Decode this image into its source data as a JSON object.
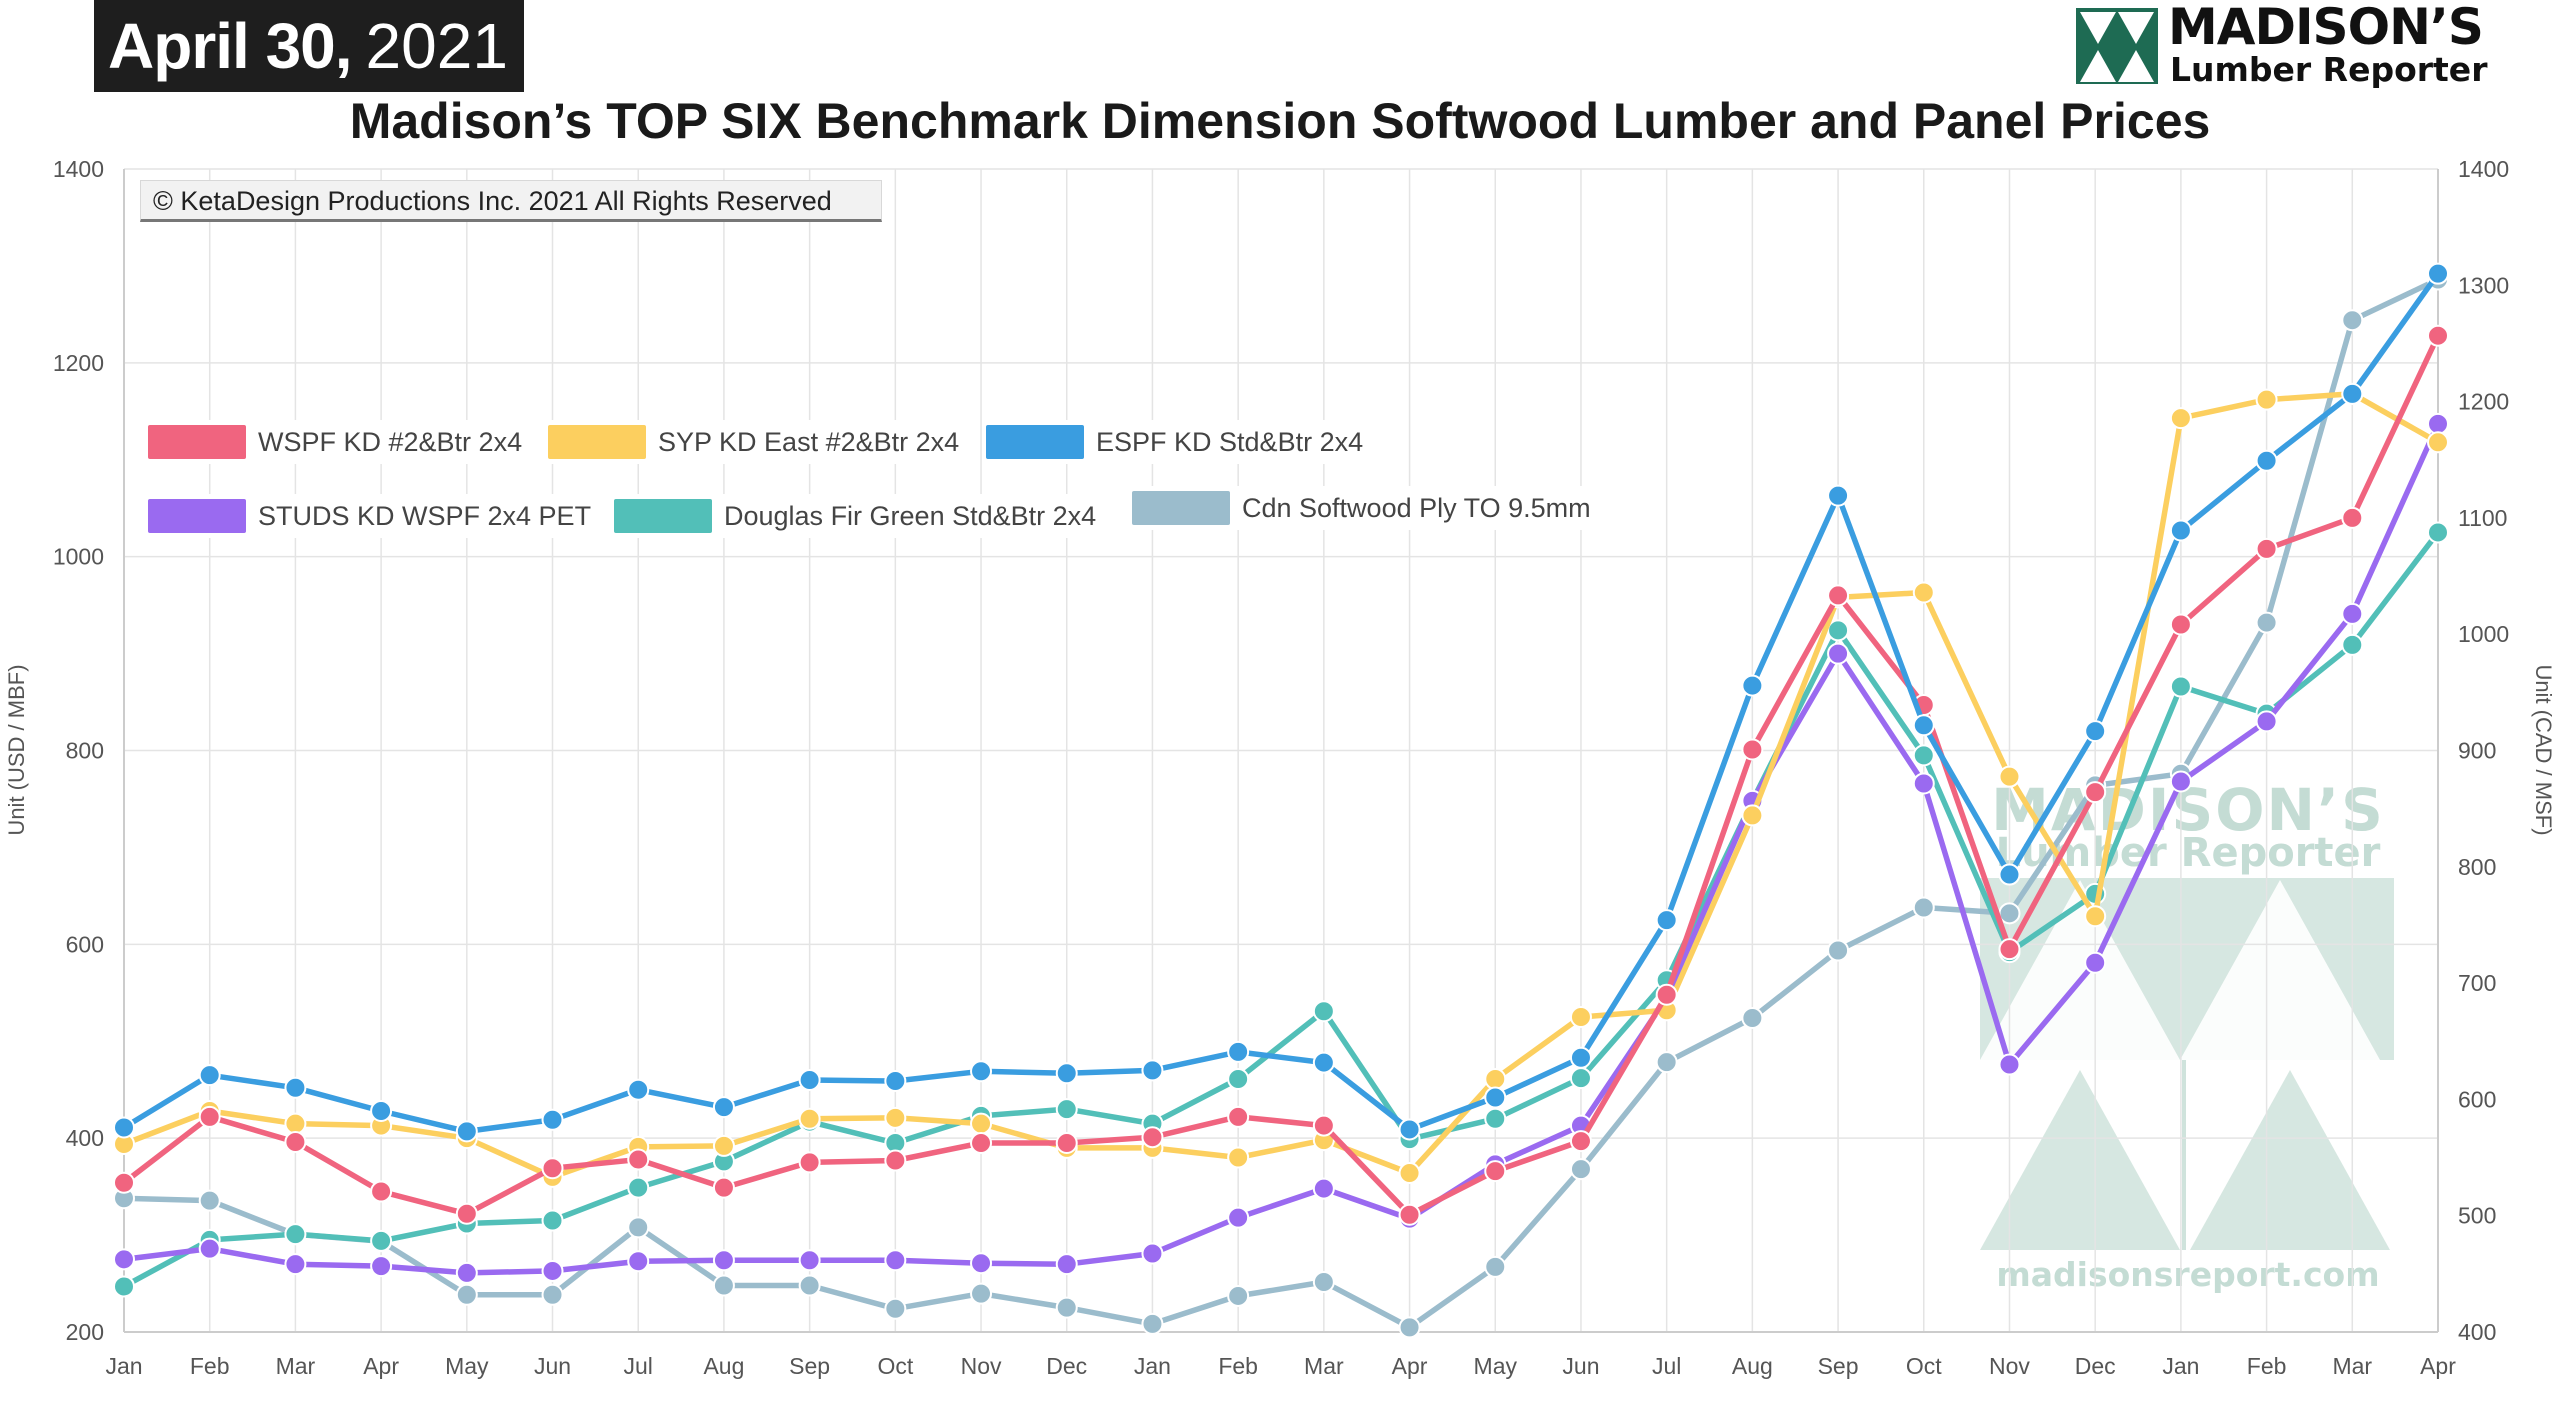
{
  "header": {
    "date_main": "April 30,",
    "date_year": "2021",
    "title": "Madison’s TOP SIX Benchmark Dimension Softwood Lumber and Panel Prices"
  },
  "logo": {
    "line1": "MADISON’S",
    "line2": "Lumber Reporter",
    "colors": {
      "mark": "#1e6b53",
      "text": "#111111"
    },
    "icon": "pine-tree-triangles-icon"
  },
  "copyright": "© KetaDesign Productions Inc. 2021 All Rights Reserved",
  "watermark": {
    "line1": "MADISON’S",
    "line2": "Lumber Reporter",
    "url": "madisonsreport.com"
  },
  "chart_data": {
    "type": "line",
    "x": [
      "Jan",
      "Feb",
      "Mar",
      "Apr",
      "May",
      "Jun",
      "Jul",
      "Aug",
      "Sep",
      "Oct",
      "Nov",
      "Dec",
      "Jan",
      "Feb",
      "Mar",
      "Apr",
      "May",
      "Jun",
      "Jul",
      "Aug",
      "Sep",
      "Oct",
      "Nov",
      "Dec",
      "Jan",
      "Feb",
      "Mar",
      "Apr"
    ],
    "y_left": {
      "label": "Unit (USD / MBF)",
      "min": 200,
      "max": 1400,
      "ticks": [
        200,
        400,
        600,
        800,
        1000,
        1200,
        1400
      ]
    },
    "y_right": {
      "label": "Unit (CAD / MSF)",
      "min": 400,
      "max": 1400,
      "ticks": [
        400,
        500,
        600,
        700,
        800,
        900,
        1000,
        1100,
        1200,
        1300,
        1400
      ]
    },
    "grid": true,
    "legend_position": "top-left",
    "series": [
      {
        "name": "WSPF KD #2&Btr 2x4",
        "color": "#f0647f",
        "axis": "left",
        "values": [
          354,
          422,
          396,
          345,
          322,
          369,
          378,
          349,
          375,
          377,
          395,
          395,
          401,
          422,
          413,
          321,
          366,
          397,
          548,
          801,
          960,
          847,
          595,
          757,
          930,
          1008,
          1040,
          1228
        ]
      },
      {
        "name": "SYP KD East #2&Btr 2x4",
        "color": "#fccf5f",
        "axis": "left",
        "values": [
          394,
          428,
          415,
          413,
          400,
          360,
          391,
          392,
          420,
          421,
          415,
          390,
          390,
          380,
          398,
          364,
          461,
          525,
          532,
          733,
          958,
          963,
          773,
          629,
          1143,
          1162,
          1168,
          1118
        ]
      },
      {
        "name": "ESPF KD Std&Btr 2x4",
        "color": "#3a9de0",
        "axis": "left",
        "values": [
          411,
          465,
          452,
          428,
          407,
          419,
          450,
          432,
          460,
          459,
          469,
          467,
          470,
          489,
          478,
          409,
          442,
          483,
          625,
          867,
          1063,
          826,
          672,
          820,
          1027,
          1099,
          1168,
          1292
        ]
      },
      {
        "name": "STUDS KD WSPF 2x4 PET",
        "color": "#9a6af0",
        "axis": "left",
        "values": [
          275,
          286,
          270,
          268,
          261,
          263,
          273,
          274,
          274,
          274,
          271,
          270,
          281,
          318,
          348,
          317,
          373,
          413,
          545,
          748,
          900,
          766,
          476,
          581,
          768,
          830,
          941,
          1137
        ]
      },
      {
        "name": "Douglas Fir Green Std&Btr 2x4",
        "color": "#52bfb8",
        "axis": "left",
        "values": [
          247,
          295,
          301,
          294,
          312,
          315,
          349,
          376,
          417,
          395,
          423,
          430,
          415,
          461,
          531,
          399,
          420,
          462,
          563,
          748,
          924,
          795,
          592,
          652,
          866,
          838,
          909,
          1025
        ]
      },
      {
        "name": "Cdn Softwood Ply TO 9.5mm",
        "color": "#9bbccc",
        "axis": "right",
        "values": [
          515,
          513,
          484,
          478,
          432,
          432,
          490,
          440,
          440,
          420,
          433,
          421,
          407,
          431,
          443,
          404,
          456,
          540,
          632,
          670,
          728,
          765,
          760,
          870,
          880,
          1010,
          1270,
          1305
        ]
      }
    ]
  }
}
